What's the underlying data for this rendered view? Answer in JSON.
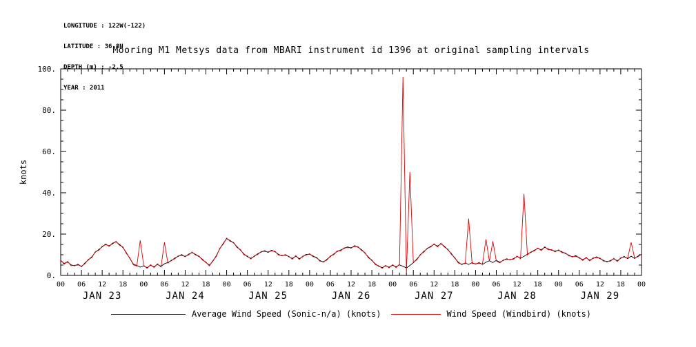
{
  "metadata": {
    "lines": [
      "LONGITUDE : 122W(-122)",
      "LATITUDE : 36.8N",
      "DEPTH (m) : -2.5",
      "YEAR : 2011"
    ]
  },
  "chart_data": {
    "type": "line",
    "title": "Mooring M1 Metsys data from MBARI instrument id 1396 at original sampling intervals",
    "xlabel": "",
    "ylabel": "knots",
    "ylim": [
      0,
      100
    ],
    "yticks": [
      0,
      20,
      40,
      60,
      80,
      100
    ],
    "ytick_labels": [
      "0.",
      "20.",
      "40.",
      "60.",
      "80.",
      "100."
    ],
    "xlim": [
      0,
      168
    ],
    "x_unit": "hours from JAN 23 2011 00:00",
    "x_major_tick_interval_hours": 6,
    "x_tick_cycle": [
      "00",
      "06",
      "12",
      "18"
    ],
    "days": [
      "JAN 23",
      "JAN 24",
      "JAN 25",
      "JAN 26",
      "JAN 27",
      "JAN 28",
      "JAN 29"
    ],
    "grid": false,
    "legend_position": "bottom",
    "series": [
      {
        "name": "Average Wind Speed (Sonic-n/a) (knots)",
        "color": "#000000",
        "values": [
          7.2,
          5.8,
          6.5,
          5.1,
          4.6,
          5.4,
          4.2,
          6.0,
          7.5,
          9.0,
          11.2,
          12.5,
          13.8,
          15.2,
          14.1,
          15.6,
          16.2,
          15.0,
          13.5,
          11.0,
          8.2,
          5.5,
          4.8,
          4.0,
          4.6,
          3.8,
          4.9,
          4.2,
          5.3,
          4.4,
          5.6,
          6.3,
          7.1,
          8.4,
          9.2,
          10.1,
          9.0,
          10.3,
          11.0,
          10.2,
          9.1,
          7.8,
          6.2,
          5.0,
          6.8,
          9.5,
          12.8,
          15.5,
          17.8,
          16.9,
          15.7,
          13.9,
          12.2,
          10.4,
          9.1,
          8.3,
          9.2,
          10.5,
          11.3,
          12.0,
          11.1,
          12.2,
          11.4,
          10.2,
          9.4,
          10.1,
          9.0,
          8.2,
          9.3,
          8.1,
          9.0,
          10.2,
          10.2,
          9.4,
          8.5,
          7.2,
          6.4,
          7.8,
          9.1,
          10.4,
          11.6,
          12.3,
          13.1,
          13.8,
          13.2,
          14.4,
          13.6,
          12.5,
          10.8,
          8.9,
          7.2,
          5.6,
          4.4,
          3.8,
          4.6,
          4.0,
          4.9,
          4.2,
          5.1,
          4.4,
          3.6,
          4.8,
          6.1,
          7.9,
          9.8,
          11.6,
          12.9,
          14.1,
          15.0,
          14.2,
          15.3,
          14.1,
          12.4,
          10.6,
          8.3,
          6.4,
          5.2,
          6.1,
          5.3,
          6.2,
          5.4,
          6.2,
          5.3,
          6.4,
          7.1,
          6.2,
          7.3,
          6.4,
          7.2,
          8.1,
          7.4,
          8.2,
          9.1,
          8.4,
          9.2,
          10.3,
          11.1,
          12.2,
          13.0,
          12.4,
          13.6,
          12.8,
          12.2,
          11.8,
          12.1,
          11.4,
          10.6,
          9.8,
          8.9,
          9.6,
          8.4,
          7.6,
          8.5,
          7.4,
          8.2,
          9.0,
          8.1,
          7.3,
          6.5,
          7.2,
          8.0,
          7.1,
          8.3,
          9.2,
          8.1,
          9.3,
          8.2,
          9.4,
          10.1
        ]
      },
      {
        "name": "Wind Speed (Windbird) (knots)",
        "color": "#dd0000",
        "values": [
          7.5,
          5.4,
          6.8,
          4.7,
          4.9,
          5.0,
          4.5,
          5.6,
          7.8,
          8.6,
          11.5,
          12.1,
          14.1,
          14.8,
          14.4,
          15.2,
          16.5,
          14.6,
          13.8,
          10.6,
          8.5,
          5.1,
          4.5,
          17.0,
          4.9,
          3.4,
          5.2,
          3.8,
          5.6,
          4.0,
          16.0,
          5.9,
          7.4,
          8.0,
          9.5,
          9.7,
          9.3,
          9.9,
          11.3,
          9.8,
          9.4,
          7.4,
          6.5,
          4.6,
          7.1,
          9.1,
          13.1,
          15.1,
          18.1,
          16.5,
          16.0,
          13.5,
          12.5,
          10.0,
          9.4,
          7.9,
          9.5,
          10.1,
          11.6,
          11.6,
          11.4,
          11.8,
          11.7,
          9.8,
          9.7,
          9.7,
          9.3,
          7.8,
          9.6,
          7.7,
          9.3,
          9.8,
          10.5,
          9.0,
          8.8,
          6.8,
          6.7,
          7.4,
          9.4,
          10.0,
          11.9,
          11.9,
          13.4,
          13.4,
          13.5,
          14.0,
          13.9,
          12.1,
          11.1,
          8.5,
          7.5,
          5.2,
          4.7,
          3.4,
          4.9,
          3.6,
          5.2,
          3.8,
          5.4,
          96.0,
          1.2,
          50.0,
          6.4,
          7.5,
          10.1,
          11.2,
          13.2,
          13.7,
          15.3,
          13.8,
          15.6,
          13.7,
          12.7,
          10.2,
          8.6,
          6.0,
          5.5,
          5.7,
          27.5,
          5.8,
          5.7,
          5.8,
          5.6,
          17.5,
          6.8,
          16.5,
          7.0,
          6.0,
          7.5,
          7.7,
          7.7,
          7.8,
          9.4,
          8.0,
          39.5,
          9.9,
          11.4,
          11.8,
          13.3,
          12.0,
          13.9,
          12.4,
          12.5,
          11.4,
          12.4,
          11.0,
          10.9,
          9.4,
          9.2,
          9.2,
          8.7,
          7.2,
          8.8,
          7.0,
          8.5,
          8.6,
          8.4,
          6.9,
          6.8,
          6.8,
          8.3,
          6.7,
          8.6,
          8.8,
          8.4,
          16.0,
          8.5,
          9.0,
          10.4
        ]
      }
    ]
  }
}
